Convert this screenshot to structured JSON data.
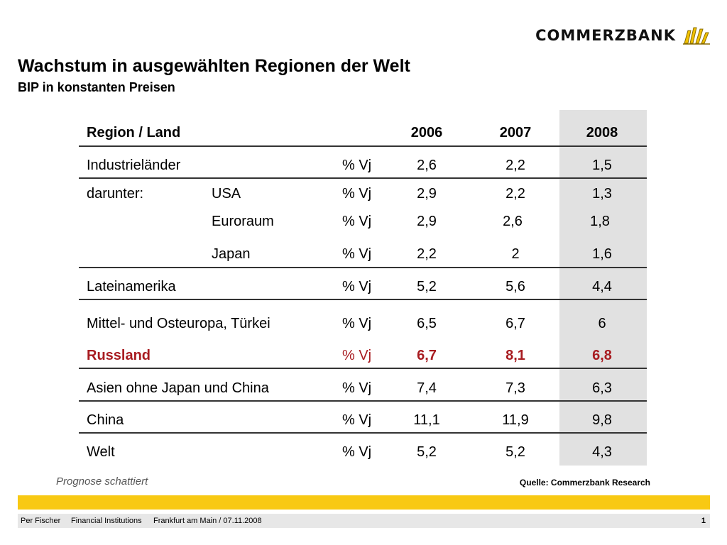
{
  "brand": {
    "name": "COMMERZBANK",
    "logo_icon": "commerzbank-ribbon-icon",
    "logo_color": "#f2c200"
  },
  "title": "Wachstum in ausgewählten Regionen der Welt",
  "subtitle": "BIP in konstanten Preisen",
  "table": {
    "header": {
      "label": "Region / Land",
      "years": [
        "2006",
        "2007",
        "2008"
      ]
    },
    "rows": [
      {
        "label": "Industrieländer",
        "sub": "",
        "unit": "% Vj",
        "values": [
          "2,6",
          "2,2",
          "1,5"
        ]
      },
      {
        "label": "darunter:",
        "sub": "USA",
        "unit": "% Vj",
        "values": [
          "2,9",
          "2,2",
          "1,3"
        ]
      },
      {
        "label": "",
        "sub": "Euroraum",
        "unit": "% Vj",
        "values": [
          "2,9",
          "2,6",
          "1,8"
        ]
      },
      {
        "label": "",
        "sub": "Japan",
        "unit": "% Vj",
        "values": [
          "2,2",
          "2",
          "1,6"
        ]
      },
      {
        "label": "Lateinamerika",
        "sub": "",
        "unit": "% Vj",
        "values": [
          "5,2",
          "5,6",
          "4,4"
        ]
      },
      {
        "label": "Mittel- und Osteuropa, Türkei",
        "sub": "",
        "unit": "% Vj",
        "values": [
          "6,5",
          "6,7",
          "6"
        ]
      },
      {
        "label": "Russland",
        "sub": "",
        "unit": "% Vj",
        "values": [
          "6,7",
          "8,1",
          "6,8"
        ]
      },
      {
        "label": "Asien ohne Japan und China",
        "sub": "",
        "unit": "% Vj",
        "values": [
          "7,4",
          "7,3",
          "6,3"
        ]
      },
      {
        "label": "China",
        "sub": "",
        "unit": "% Vj",
        "values": [
          "11,1",
          "11,9",
          "9,8"
        ]
      },
      {
        "label": "Welt",
        "sub": "",
        "unit": "% Vj",
        "values": [
          "5,2",
          "5,2",
          "4,3"
        ]
      }
    ],
    "highlight_color": "#a81c21",
    "forecast_shade_color": "#e1e1e1"
  },
  "note": "Prognose schattiert",
  "source": "Quelle: Commerzbank Research",
  "footer": {
    "author": "Per Fischer",
    "department": "Financial Institutions",
    "place_date": "Frankfurt am Main / 07.11.2008",
    "page": "1"
  },
  "accent_bar_color": "#f8c913"
}
